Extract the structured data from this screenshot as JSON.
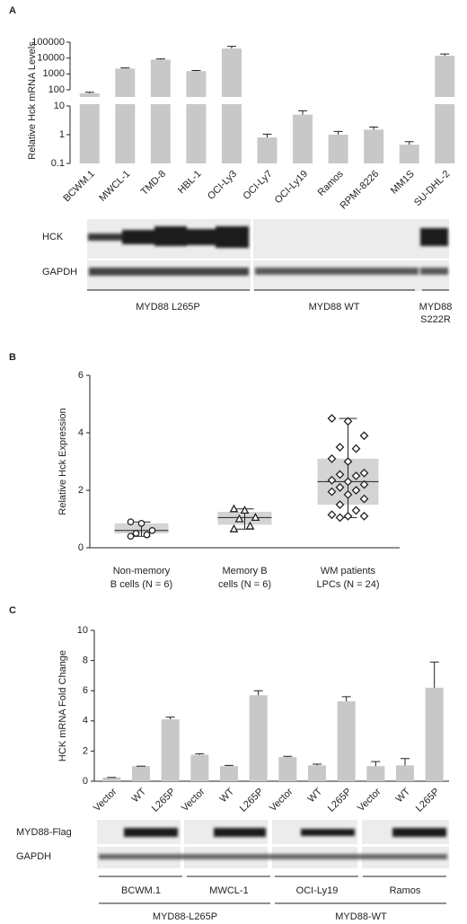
{
  "chart_data": [
    {
      "panel": "A",
      "type": "bar",
      "ylabel": "Relative Hck mRNA Levels",
      "yscale": "log",
      "y_break": [
        10,
        100
      ],
      "ylim": [
        0.1,
        100000
      ],
      "yticks": [
        0.1,
        1,
        10,
        100,
        1000,
        10000,
        100000
      ],
      "categories": [
        "BCWM.1",
        "MWCL-1",
        "TMD-8",
        "HBL-1",
        "OCI-Ly3",
        "OCI-Ly7",
        "OCI-Ly19",
        "Ramos",
        "RPMI-8226",
        "MM1S",
        "SU-DHL-2"
      ],
      "values": [
        60,
        2200,
        8000,
        1500,
        40000,
        0.8,
        5,
        1,
        1.5,
        0.45,
        14000
      ],
      "errors": [
        10,
        200,
        800,
        150,
        15000,
        0.25,
        1.8,
        0.3,
        0.35,
        0.12,
        4000
      ],
      "color": "#c8c8c8",
      "blot": {
        "rows": [
          "HCK",
          "GAPDH"
        ],
        "groups": [
          {
            "label": "MYD88 L265P"
          },
          {
            "label": "MYD88 WT"
          },
          {
            "label_lines": [
              "MYD88",
              "S222R"
            ]
          }
        ]
      }
    },
    {
      "panel": "B",
      "type": "box",
      "ylabel": "Relative Hck Expression",
      "ylim": [
        0,
        6
      ],
      "yticks": [
        0,
        2,
        4,
        6
      ],
      "categories": [
        [
          "Non-memory",
          "B cells (N = 6)"
        ],
        [
          "Memory B",
          "cells (N = 6)"
        ],
        [
          "WM patients",
          "LPCs (N = 24)"
        ]
      ],
      "boxes": [
        {
          "min": 0.4,
          "q1": 0.5,
          "median": 0.6,
          "q3": 0.85,
          "max": 0.9
        },
        {
          "min": 0.65,
          "q1": 0.8,
          "median": 1.05,
          "q3": 1.25,
          "max": 1.35
        },
        {
          "min": 1.05,
          "q1": 1.5,
          "median": 2.3,
          "q3": 3.1,
          "max": 4.5
        }
      ],
      "points": [
        [
          0.9,
          0.85,
          0.6,
          0.5,
          0.45,
          0.4
        ],
        [
          1.35,
          1.3,
          1.05,
          1.0,
          0.75,
          0.65
        ],
        [
          4.5,
          4.4,
          3.9,
          3.5,
          3.45,
          3.1,
          3.0,
          2.6,
          2.55,
          2.5,
          2.35,
          2.3,
          2.2,
          2.1,
          2.0,
          1.95,
          1.85,
          1.7,
          1.5,
          1.3,
          1.15,
          1.1,
          1.1,
          1.05
        ]
      ],
      "markers": [
        "circle",
        "triangle",
        "diamond"
      ],
      "color": "#d4d4d4"
    },
    {
      "panel": "C",
      "type": "bar",
      "ylabel": "HCK mRNA Fold Change",
      "ylim": [
        0,
        10
      ],
      "yticks": [
        0,
        2,
        4,
        6,
        8,
        10
      ],
      "categories": [
        "Vector",
        "WT",
        "L265P",
        "Vector",
        "WT",
        "L265P",
        "Vector",
        "WT",
        "L265P",
        "Vector",
        "WT",
        "L265P"
      ],
      "values": [
        0.25,
        1,
        4.1,
        1.75,
        1,
        5.7,
        1.6,
        1.05,
        5.3,
        1,
        1.05,
        6.2
      ],
      "errors": [
        0,
        0,
        0.15,
        0.07,
        0.05,
        0.3,
        0.05,
        0.08,
        0.3,
        0.3,
        0.45,
        1.7
      ],
      "color": "#c8c8c8",
      "blot": {
        "rows": [
          "MYD88-Flag",
          "GAPDH"
        ],
        "groups": [
          "BCWM.1",
          "MWCL-1",
          "OCI-Ly19",
          "Ramos"
        ],
        "supergroups": [
          "MYD88-L265P",
          "MYD88-WT"
        ]
      }
    }
  ]
}
